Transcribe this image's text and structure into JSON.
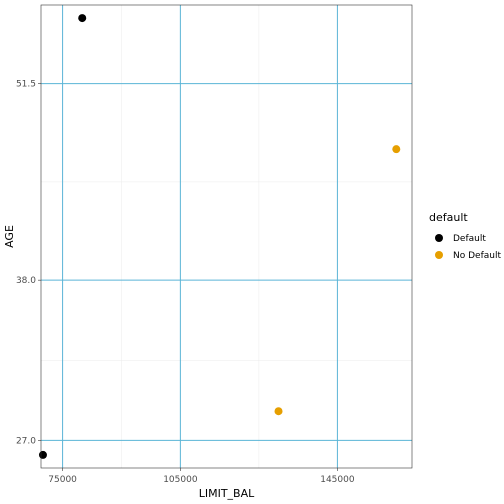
{
  "chart_data": {
    "type": "scatter",
    "xlabel": "LIMIT_BAL",
    "ylabel": "AGE",
    "xlim": [
      69500,
      164000
    ],
    "ylim": [
      25.1,
      56.9
    ],
    "x_ticks": [
      75000,
      105000,
      145000
    ],
    "x_tick_labels": [
      "75000",
      "105000",
      "145000"
    ],
    "y_ticks": [
      27.0,
      38.0,
      51.5
    ],
    "y_tick_labels": [
      "27.0",
      "38.0",
      "51.5"
    ],
    "grid": true,
    "legend": {
      "title": "default",
      "position": "right"
    },
    "series": [
      {
        "name": "Default",
        "color": "#000000",
        "points": [
          {
            "x": 80000,
            "y": 56
          },
          {
            "x": 70000,
            "y": 26
          }
        ]
      },
      {
        "name": "No Default",
        "color": "#E69F00",
        "points": [
          {
            "x": 160000,
            "y": 47
          },
          {
            "x": 130000,
            "y": 29
          }
        ]
      }
    ]
  }
}
